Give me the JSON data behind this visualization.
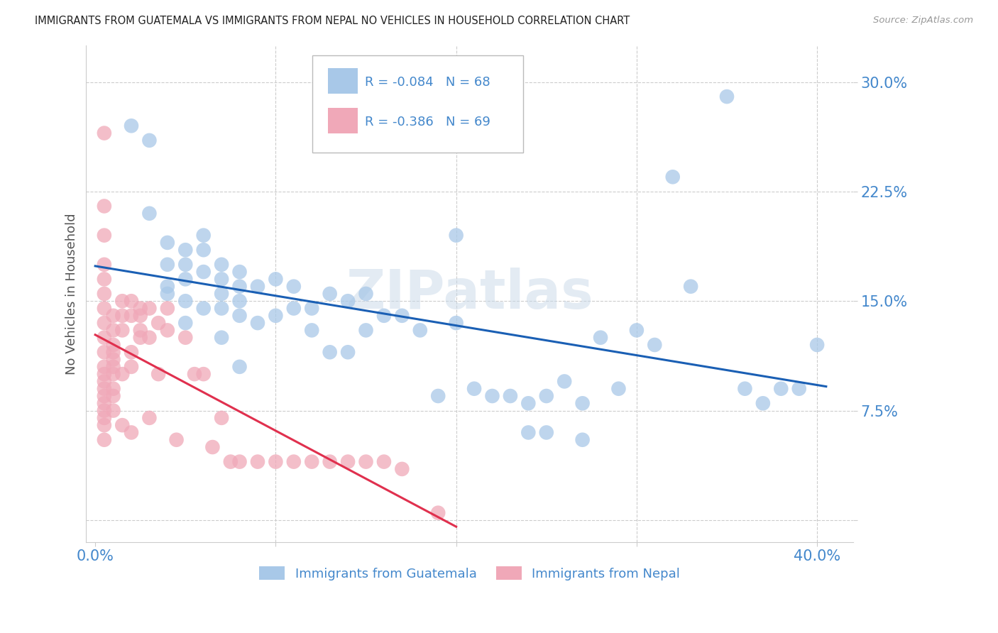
{
  "title": "IMMIGRANTS FROM GUATEMALA VS IMMIGRANTS FROM NEPAL NO VEHICLES IN HOUSEHOLD CORRELATION CHART",
  "source": "Source: ZipAtlas.com",
  "ylabel": "No Vehicles in Household",
  "xlim": [
    -0.005,
    0.42
  ],
  "ylim": [
    -0.015,
    0.325
  ],
  "ytick_vals": [
    0.0,
    0.075,
    0.15,
    0.225,
    0.3
  ],
  "ytick_labels": [
    "",
    "7.5%",
    "15.0%",
    "22.5%",
    "30.0%"
  ],
  "xtick_vals": [
    0.0,
    0.1,
    0.2,
    0.3,
    0.4
  ],
  "xtick_labels": [
    "0.0%",
    "",
    "",
    "",
    "40.0%"
  ],
  "legend_guatemala_R": "-0.084",
  "legend_guatemala_N": "68",
  "legend_nepal_R": "-0.386",
  "legend_nepal_N": "69",
  "color_guatemala": "#a8c8e8",
  "color_nepal": "#f0a8b8",
  "color_guatemala_line": "#1a5fb4",
  "color_nepal_line": "#e0304e",
  "color_axis_labels": "#4488cc",
  "color_title": "#222222",
  "color_source": "#999999",
  "watermark": "ZIPatlas",
  "guatemala_x": [
    0.02,
    0.03,
    0.03,
    0.04,
    0.04,
    0.04,
    0.04,
    0.05,
    0.05,
    0.05,
    0.05,
    0.05,
    0.06,
    0.06,
    0.06,
    0.06,
    0.07,
    0.07,
    0.07,
    0.07,
    0.07,
    0.08,
    0.08,
    0.08,
    0.08,
    0.08,
    0.09,
    0.09,
    0.1,
    0.1,
    0.11,
    0.11,
    0.12,
    0.12,
    0.13,
    0.13,
    0.14,
    0.14,
    0.15,
    0.15,
    0.16,
    0.17,
    0.18,
    0.19,
    0.2,
    0.2,
    0.21,
    0.22,
    0.23,
    0.24,
    0.24,
    0.25,
    0.25,
    0.26,
    0.27,
    0.27,
    0.28,
    0.29,
    0.3,
    0.31,
    0.32,
    0.33,
    0.35,
    0.36,
    0.37,
    0.38,
    0.39,
    0.4
  ],
  "guatemala_y": [
    0.27,
    0.26,
    0.21,
    0.19,
    0.175,
    0.16,
    0.155,
    0.185,
    0.175,
    0.165,
    0.15,
    0.135,
    0.195,
    0.185,
    0.17,
    0.145,
    0.175,
    0.165,
    0.155,
    0.145,
    0.125,
    0.17,
    0.16,
    0.15,
    0.14,
    0.105,
    0.16,
    0.135,
    0.165,
    0.14,
    0.16,
    0.145,
    0.145,
    0.13,
    0.155,
    0.115,
    0.15,
    0.115,
    0.155,
    0.13,
    0.14,
    0.14,
    0.13,
    0.085,
    0.195,
    0.135,
    0.09,
    0.085,
    0.085,
    0.08,
    0.06,
    0.085,
    0.06,
    0.095,
    0.08,
    0.055,
    0.125,
    0.09,
    0.13,
    0.12,
    0.235,
    0.16,
    0.29,
    0.09,
    0.08,
    0.09,
    0.09,
    0.12
  ],
  "nepal_x": [
    0.005,
    0.005,
    0.005,
    0.005,
    0.005,
    0.005,
    0.005,
    0.005,
    0.005,
    0.005,
    0.005,
    0.005,
    0.005,
    0.005,
    0.005,
    0.005,
    0.005,
    0.005,
    0.005,
    0.005,
    0.01,
    0.01,
    0.01,
    0.01,
    0.01,
    0.01,
    0.01,
    0.01,
    0.01,
    0.01,
    0.015,
    0.015,
    0.015,
    0.015,
    0.015,
    0.02,
    0.02,
    0.02,
    0.02,
    0.02,
    0.025,
    0.025,
    0.025,
    0.025,
    0.03,
    0.03,
    0.03,
    0.035,
    0.035,
    0.04,
    0.04,
    0.045,
    0.05,
    0.055,
    0.06,
    0.065,
    0.07,
    0.075,
    0.08,
    0.09,
    0.1,
    0.11,
    0.12,
    0.13,
    0.14,
    0.15,
    0.16,
    0.17,
    0.19
  ],
  "nepal_y": [
    0.265,
    0.215,
    0.195,
    0.175,
    0.165,
    0.155,
    0.145,
    0.135,
    0.125,
    0.115,
    0.105,
    0.1,
    0.095,
    0.09,
    0.085,
    0.08,
    0.075,
    0.07,
    0.065,
    0.055,
    0.14,
    0.13,
    0.12,
    0.115,
    0.11,
    0.105,
    0.1,
    0.09,
    0.085,
    0.075,
    0.15,
    0.14,
    0.13,
    0.1,
    0.065,
    0.15,
    0.14,
    0.115,
    0.105,
    0.06,
    0.145,
    0.14,
    0.13,
    0.125,
    0.145,
    0.125,
    0.07,
    0.135,
    0.1,
    0.145,
    0.13,
    0.055,
    0.125,
    0.1,
    0.1,
    0.05,
    0.07,
    0.04,
    0.04,
    0.04,
    0.04,
    0.04,
    0.04,
    0.04,
    0.04,
    0.04,
    0.04,
    0.035,
    0.005
  ],
  "grid_color": "#cccccc",
  "spine_color": "#cccccc"
}
